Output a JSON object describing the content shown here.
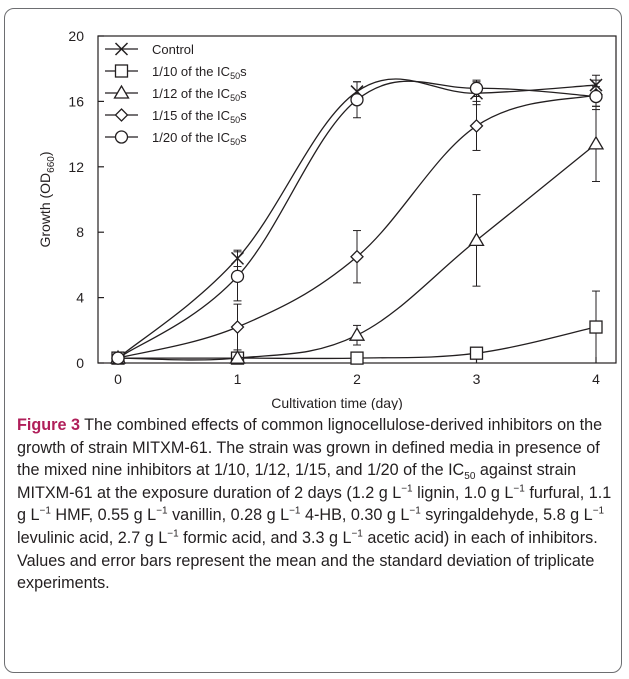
{
  "chart_data": {
    "type": "line",
    "xlabel": "Cultivation time (day)",
    "ylabel_main": "Growth (OD",
    "ylabel_sub": "660",
    "ylabel_end": ")",
    "x": [
      0,
      1,
      2,
      3,
      4
    ],
    "xlim": [
      0,
      4
    ],
    "ylim": [
      0,
      20
    ],
    "xticks": [
      "0",
      "1",
      "2",
      "3",
      "4"
    ],
    "yticks": [
      "0",
      "4",
      "8",
      "12",
      "16",
      "20"
    ],
    "grid": false,
    "legend_position": "top-left",
    "series": [
      {
        "name": "Control",
        "marker": "x",
        "legend_pre": "Control",
        "legend_sub": "",
        "legend_post": "",
        "values": [
          0.3,
          6.4,
          16.6,
          16.5,
          17.0
        ],
        "errors": [
          0,
          0.5,
          0.6,
          0.7,
          0.6
        ]
      },
      {
        "name": "1/10 of the IC50s",
        "marker": "square",
        "legend_pre": "1/10 of the IC",
        "legend_sub": "50",
        "legend_post": "s",
        "values": [
          0.3,
          0.3,
          0.3,
          0.6,
          2.2
        ],
        "errors": [
          0,
          0.1,
          0.1,
          0.2,
          2.2
        ]
      },
      {
        "name": "1/12 of the IC50s",
        "marker": "triangle",
        "legend_pre": "1/12 of the IC",
        "legend_sub": "50",
        "legend_post": "s",
        "values": [
          0.3,
          0.3,
          1.7,
          7.5,
          13.4
        ],
        "errors": [
          0,
          0.1,
          0.6,
          2.8,
          2.3
        ]
      },
      {
        "name": "1/15 of the IC50s",
        "marker": "diamond",
        "legend_pre": "1/15 of the IC",
        "legend_sub": "50",
        "legend_post": "s",
        "values": [
          0.3,
          2.2,
          6.5,
          14.5,
          16.4
        ],
        "errors": [
          0,
          1.4,
          1.6,
          1.5,
          0.9
        ]
      },
      {
        "name": "1/20 of the IC50s",
        "marker": "circle",
        "legend_pre": "1/20 of the IC",
        "legend_sub": "50",
        "legend_post": "s",
        "values": [
          0.3,
          5.3,
          16.1,
          16.8,
          16.3
        ],
        "errors": [
          0,
          1.5,
          1.1,
          0.5,
          0.6
        ]
      }
    ]
  },
  "caption": {
    "figure_label": "Figure 3",
    "text_1": " The combined effects of common lignocellulose-derived inhibitors on the growth of strain MITXM-61. The strain was grown in defined media in presence of the mixed nine inhibitors at 1/10, 1/12, 1/15, and 1/20 of the IC",
    "sub_50": "50",
    "text_2": " against strain MITXM-61 at the exposure duration of 2 days (1.2 g L",
    "sup_1": "−1",
    "text_3": " lignin, 1.0 g L",
    "sup_2": "−1",
    "text_4": " furfural, 1.1 g L",
    "sup_3": "−1",
    "text_5": " HMF, 0.55 g L",
    "sup_4": "−1",
    "text_6": " vanillin, 0.28 g L",
    "sup_5": "−1",
    "text_7": " 4-HB, 0.30 g L",
    "sup_6": "−1",
    "text_8": " syringaldehyde, 5.8 g L",
    "sup_7": "−1",
    "text_9": " levulinic acid, 2.7 g L",
    "sup_8": "−1",
    "text_10": " formic acid, and 3.3 g L",
    "sup_9": "−1",
    "text_11": " acetic acid) in each of inhibitors. Values and error bars represent the mean and the standard deviation of triplicate experiments."
  }
}
